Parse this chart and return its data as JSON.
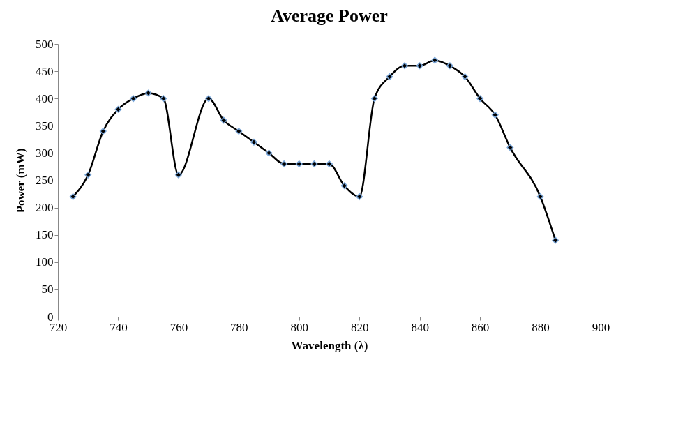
{
  "chart_data": {
    "type": "line",
    "title": "Average Power",
    "xlabel": "Wavelength (λ)",
    "ylabel": "Power (mW)",
    "x": [
      725,
      730,
      735,
      740,
      745,
      750,
      755,
      760,
      770,
      775,
      780,
      785,
      790,
      795,
      800,
      805,
      810,
      815,
      820,
      825,
      830,
      835,
      840,
      845,
      850,
      855,
      860,
      865,
      870,
      880,
      885
    ],
    "series": [
      {
        "color": "#000000",
        "values": [
          220,
          260,
          340,
          380,
          400,
          410,
          400,
          260,
          400,
          360,
          340,
          320,
          300,
          280,
          280,
          280,
          280,
          240,
          220,
          400,
          440,
          460,
          460,
          470,
          460,
          440,
          400,
          370,
          310,
          220,
          140
        ]
      }
    ],
    "xlim": [
      720,
      900
    ],
    "xticks": [
      720,
      740,
      760,
      780,
      800,
      820,
      840,
      860,
      880,
      900
    ],
    "ylim": [
      0,
      500
    ],
    "yticks": [
      0,
      50,
      100,
      150,
      200,
      250,
      300,
      350,
      400,
      450,
      500
    ],
    "marker": "diamond",
    "line_style": "solid"
  }
}
